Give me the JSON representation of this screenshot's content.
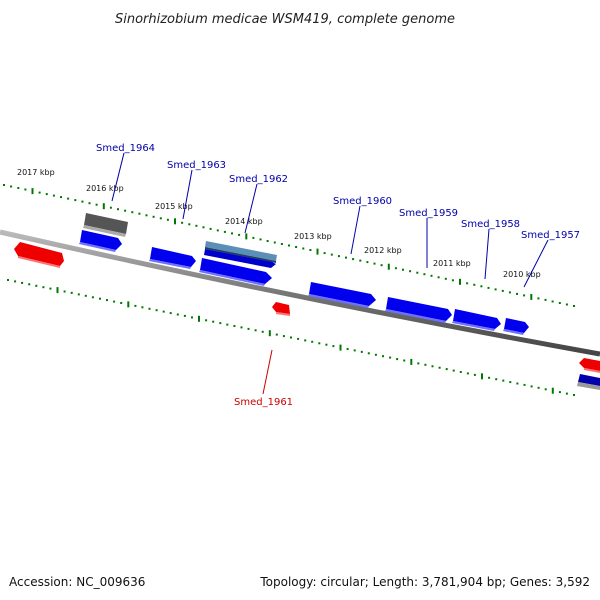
{
  "title": "Sinorhizobium medicae WSM419, complete genome",
  "footer": {
    "accession": "Accession: NC_009636",
    "summary": "Topology: circular; Length: 3,781,904 bp; Genes: 3,592"
  },
  "tick_labels": [
    "2017 kbp",
    "2016 kbp",
    "2015 kbp",
    "2014 kbp",
    "2013 kbp",
    "2012 kbp",
    "2011 kbp",
    "2010 kbp"
  ],
  "gene_labels": [
    {
      "name": "Smed_1964",
      "strand": "forward"
    },
    {
      "name": "Smed_1963",
      "strand": "forward"
    },
    {
      "name": "Smed_1962",
      "strand": "forward"
    },
    {
      "name": "Smed_1960",
      "strand": "forward"
    },
    {
      "name": "Smed_1959",
      "strand": "forward"
    },
    {
      "name": "Smed_1958",
      "strand": "forward"
    },
    {
      "name": "Smed_1957",
      "strand": "forward"
    },
    {
      "name": "Smed_1961",
      "strand": "reverse"
    }
  ],
  "colors": {
    "forward_gene": "#0000ee",
    "reverse_gene": "#ee0000",
    "pseudo_gene": "#555555",
    "light_blue_feature": "#5b8fb8",
    "ticks": "#007700",
    "forward_label": "#0000aa",
    "reverse_label": "#cc0000",
    "backbone": "#777777"
  }
}
